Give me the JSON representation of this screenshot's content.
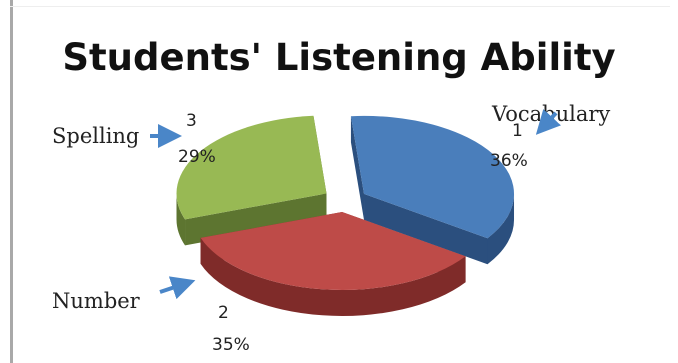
{
  "chart_data": {
    "type": "pie",
    "title": "Students' Listening Ability",
    "three_d": true,
    "exploded": true,
    "legend": "none",
    "slices": [
      {
        "id": "vocabulary",
        "category_label": "Vocabulary",
        "point_label": "1",
        "percent_label": "36%",
        "value": 36,
        "color": "#4a7ebb",
        "side_color": "#2b4f7e"
      },
      {
        "id": "number",
        "category_label": "Number",
        "point_label": "2",
        "percent_label": "35%",
        "value": 35,
        "color": "#be4b48",
        "side_color": "#7f2b29"
      },
      {
        "id": "spelling",
        "category_label": "Spelling",
        "point_label": "3",
        "percent_label": "29%",
        "value": 29,
        "color": "#98b954",
        "side_color": "#5d7530"
      }
    ],
    "arrow_color": "#4a86c8"
  }
}
